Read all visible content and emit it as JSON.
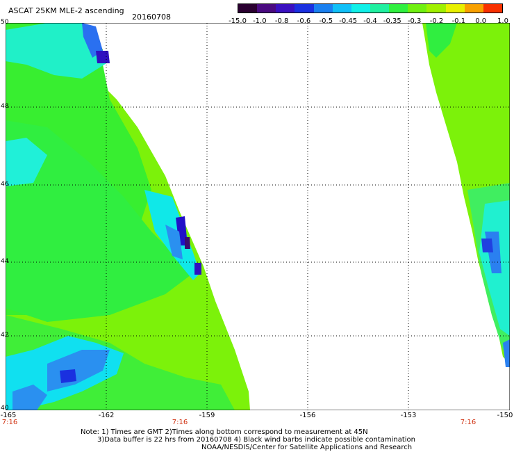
{
  "title": "ASCAT 25KM MLE-2 ascending",
  "date": "20160708",
  "colorbar": {
    "labels": [
      "-15.0",
      "-1.0",
      "-0.8",
      "-0.6",
      "-0.5",
      "-0.45",
      "-0.4",
      "-0.35",
      "-0.3",
      "-0.2",
      "-0.1",
      "0.0",
      "1.0"
    ],
    "colors": [
      "#2a0030",
      "#4a0a80",
      "#3a10c0",
      "#1a30e0",
      "#1a80f0",
      "#10c0f8",
      "#10f0e8",
      "#20f0a0",
      "#30f040",
      "#70f010",
      "#a0f000",
      "#e8f000",
      "#f8a000",
      "#f83000"
    ]
  },
  "map": {
    "lon_range": [
      -165,
      -150
    ],
    "lat_range": [
      40,
      50
    ],
    "lat_labels": [
      "50",
      "48",
      "46",
      "44",
      "42",
      "40"
    ],
    "lon_labels": [
      "-165",
      "-162",
      "-159",
      "-156",
      "-153",
      "-150"
    ],
    "time_labels": [
      "7:16",
      "7:16",
      "7:16"
    ]
  },
  "notes": [
    "Note: 1) Times are GMT 2)Times along bottom correspond to measurement at 45N",
    "3)Data buffer is 22 hrs from 20160708 4) Black wind barbs indicate possible contamination",
    "NOAA/NESDIS/Center for Satellite Applications and Research"
  ]
}
